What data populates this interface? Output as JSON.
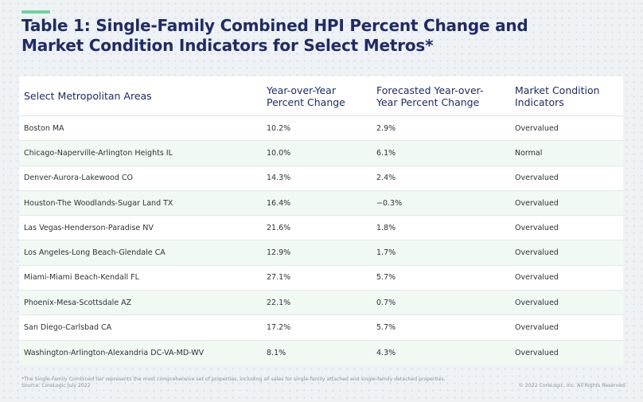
{
  "title_line1": "Table 1: Single-Family Combined HPI Percent Change and",
  "title_line2": "Market Condition Indicators for Select Metros*",
  "headers": {
    "area": "Select Metropolitan Areas",
    "yoy": [
      "Year-over-Year",
      "Percent Change"
    ],
    "forecast": [
      "Forecasted Year-over-",
      "Year Percent Change"
    ],
    "indicator": [
      "Market Condition",
      "Indicators"
    ]
  },
  "rows": [
    {
      "area": "Boston MA",
      "yoy": "10.2%",
      "forecast": "2.9%",
      "indicator": "Overvalued"
    },
    {
      "area": "Chicago-Naperville-Arlington Heights IL",
      "yoy": "10.0%",
      "forecast": "6.1%",
      "indicator": "Normal"
    },
    {
      "area": "Denver-Aurora-Lakewood CO",
      "yoy": "14.3%",
      "forecast": "2.4%",
      "indicator": "Overvalued"
    },
    {
      "area": "Houston-The Woodlands-Sugar Land TX",
      "yoy": "16.4%",
      "forecast": "−0.3%",
      "indicator": "Overvalued"
    },
    {
      "area": "Las Vegas-Henderson-Paradise NV",
      "yoy": "21.6%",
      "forecast": "1.8%",
      "indicator": "Overvalued"
    },
    {
      "area": "Los Angeles-Long Beach-Glendale CA",
      "yoy": "12.9%",
      "forecast": "1.7%",
      "indicator": "Overvalued"
    },
    {
      "area": "Miami-Miami Beach-Kendall FL",
      "yoy": "27.1%",
      "forecast": "5.7%",
      "indicator": "Overvalued"
    },
    {
      "area": "Phoenix-Mesa-Scottsdale AZ",
      "yoy": "22.1%",
      "forecast": "0.7%",
      "indicator": "Overvalued"
    },
    {
      "area": "San Diego-Carlsbad CA",
      "yoy": "17.2%",
      "forecast": "5.7%",
      "indicator": "Overvalued"
    },
    {
      "area": "Washington-Arlington-Alexandria DC-VA-MD-WV",
      "yoy": "8.1%",
      "forecast": "4.3%",
      "indicator": "Overvalued"
    }
  ],
  "footnote_line1": "*The Single-Family Combined tier represents the most comprehensive set of properties, including all sales for single-family attached and single-family detached properties.",
  "footnote_line2": "Source: CoreLogic July 2022",
  "copyright": "© 2022 CoreLogic, Inc. All Rights Reserved.",
  "colors": {
    "accent": "#6fd3a3",
    "title": "#1f2a66",
    "row_alt": "#f0f9f2"
  }
}
